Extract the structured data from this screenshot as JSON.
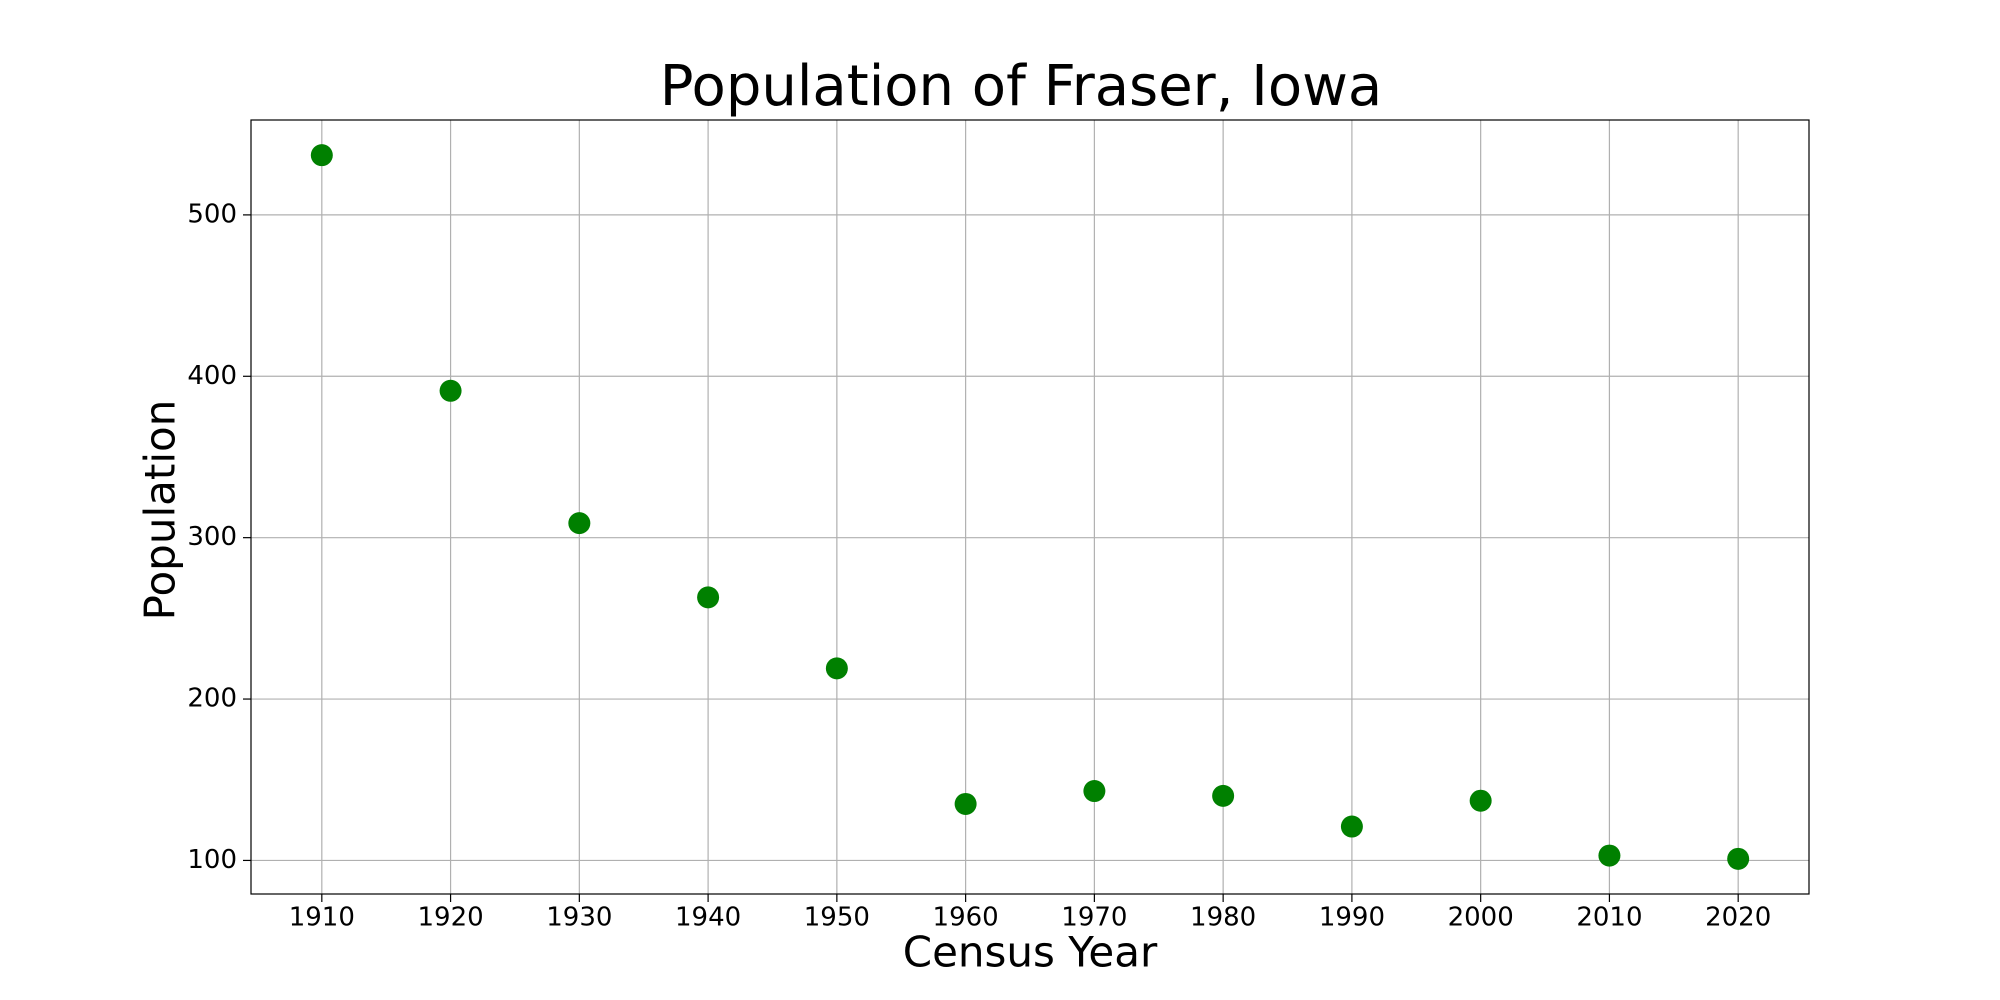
{
  "chart_data": {
    "type": "scatter",
    "title": "Population of Fraser, Iowa",
    "x_label": "Census Year",
    "y_label": "Population",
    "x": [
      1910,
      1920,
      1930,
      1940,
      1950,
      1960,
      1970,
      1980,
      1990,
      2000,
      2010,
      2020
    ],
    "values": [
      537,
      391,
      309,
      263,
      219,
      135,
      143,
      140,
      121,
      137,
      103,
      101
    ],
    "color": "#008000",
    "xlim": [
      1904.5,
      2025.5
    ],
    "xticks": [
      1910,
      1920,
      1930,
      1940,
      1950,
      1960,
      1970,
      1980,
      1990,
      2000,
      2010,
      2020
    ],
    "ylim": [
      79.2,
      558.8
    ],
    "yticks": [
      100,
      200,
      300,
      400,
      500
    ],
    "grid": true
  }
}
